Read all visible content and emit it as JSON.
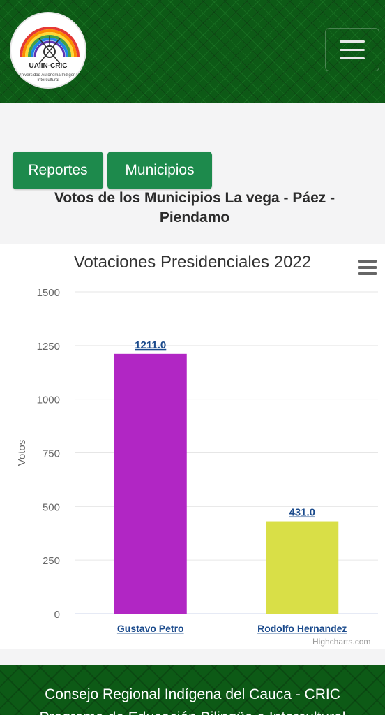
{
  "header": {
    "logo_text": "UAIIN-CRIC",
    "logo_ring_text": "Universidad Autónoma Indígena Intercultural"
  },
  "nav": {
    "reportes_label": "Reportes",
    "municipios_label": "Municipios"
  },
  "page_title": "Votos de los Municipios La vega - Páez - Piendamo",
  "chart_data": {
    "type": "bar",
    "title": "Votaciones Presidenciales 2022",
    "ylabel": "Votos",
    "xlabel": "",
    "categories": [
      "Gustavo Petro",
      "Rodolfo Hernandez"
    ],
    "values": [
      1211.0,
      431.0
    ],
    "data_labels": [
      "1211.0",
      "431.0"
    ],
    "colors": [
      "#b126c4",
      "#d9df47"
    ],
    "ylim": [
      0,
      1500
    ],
    "yticks": [
      0,
      250,
      500,
      750,
      1000,
      1250,
      1500
    ],
    "grid": true,
    "legend": "none",
    "credits": "Highcharts.com"
  },
  "footer": {
    "line1": "Consejo Regional Indígena del Cauca - CRIC",
    "line2": "Programa de Educación Bilingüe e Intercultural"
  }
}
